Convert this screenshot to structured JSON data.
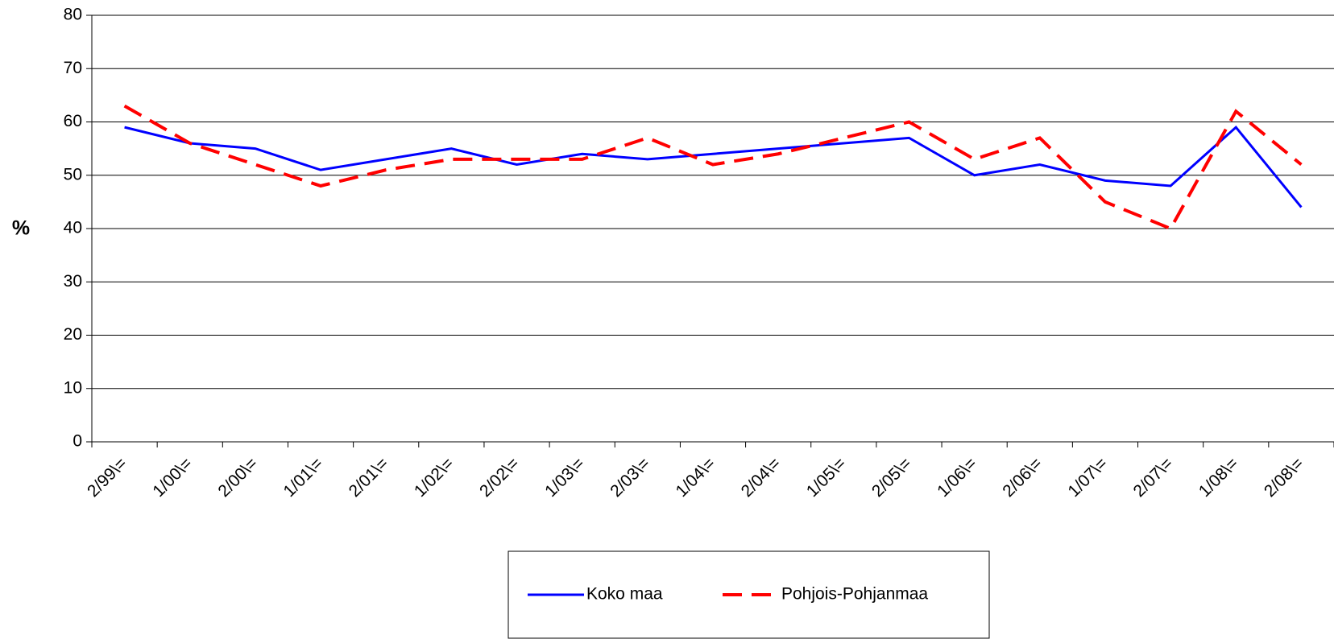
{
  "chart_data": {
    "type": "line",
    "y_label": "%",
    "categories": [
      "2/99\\=",
      "1/00\\=",
      "2/00\\=",
      "1/01\\=",
      "2/01\\=",
      "1/02\\=",
      "2/02\\=",
      "1/03\\=",
      "2/03\\=",
      "1/04\\=",
      "2/04\\=",
      "1/05\\=",
      "2/05\\=",
      "1/06\\=",
      "2/06\\=",
      "1/07\\=",
      "2/07\\=",
      "1/08\\=",
      "2/08\\="
    ],
    "series": [
      {
        "name": "Koko maa",
        "color": "#0000ff",
        "dash": false,
        "values": [
          59,
          56,
          55,
          51,
          53,
          55,
          52,
          54,
          53,
          54,
          55,
          56,
          57,
          50,
          52,
          49,
          48,
          59,
          44
        ]
      },
      {
        "name": "Pohjois-Pohjanmaa",
        "color": "#ff0000",
        "dash": true,
        "values": [
          63,
          56,
          52,
          48,
          51,
          53,
          53,
          53,
          57,
          52,
          54,
          57,
          60,
          53,
          57,
          45,
          40,
          62,
          52
        ]
      }
    ],
    "ylim": [
      0,
      80
    ],
    "yticks": [
      0,
      10,
      20,
      30,
      40,
      50,
      60,
      70,
      80
    ],
    "grid": true
  }
}
